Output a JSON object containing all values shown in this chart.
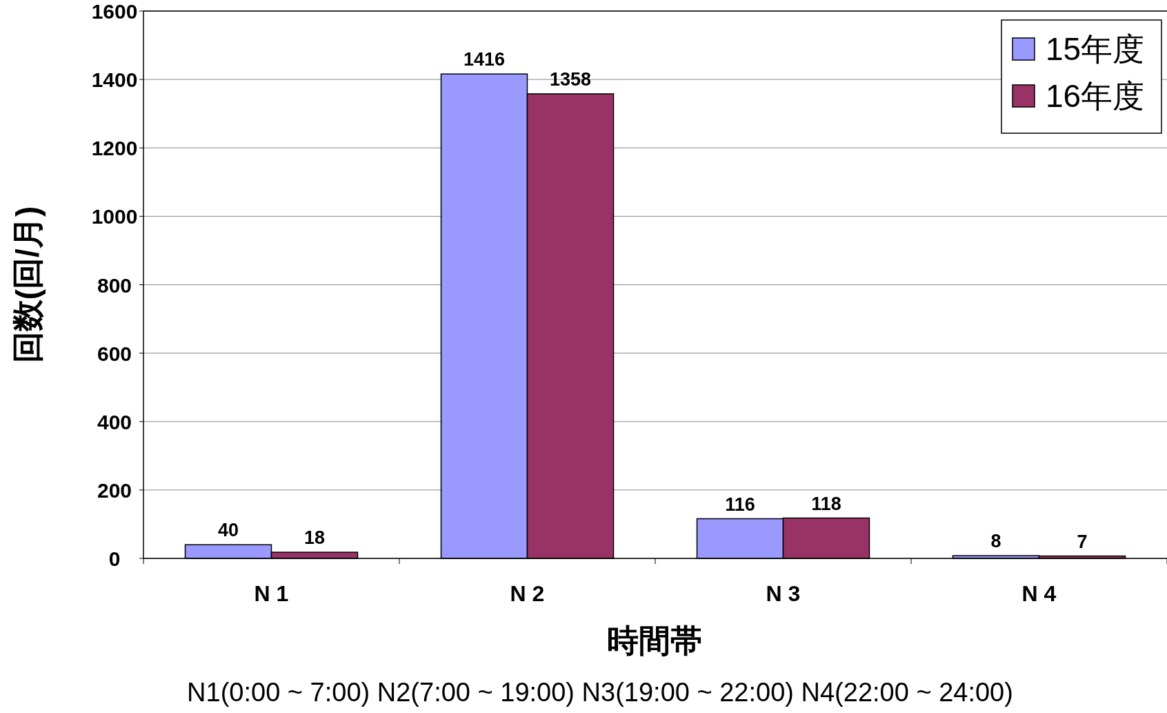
{
  "chart_data": {
    "type": "bar",
    "xlabel": "時間帯",
    "ylabel": "回数(回/月)",
    "categories": [
      "N 1",
      "N 2",
      "N 3",
      "N 4"
    ],
    "series": [
      {
        "name": "15年度",
        "color": "#9999ff",
        "values": [
          40,
          1416,
          116,
          8
        ]
      },
      {
        "name": "16年度",
        "color": "#993366",
        "values": [
          18,
          1358,
          118,
          7
        ]
      }
    ],
    "ylim": [
      0,
      1600
    ],
    "yticks": [
      0,
      200,
      400,
      600,
      800,
      1000,
      1200,
      1400,
      1600
    ],
    "grid": "y",
    "legend": "top right",
    "data_labels": true,
    "annotations": [
      "N1(0:00 ~ 7:00)  N2(7:00  ~  19:00) N3(19:00  ~  22:00) N4(22:00  ~ 24:00)"
    ]
  }
}
